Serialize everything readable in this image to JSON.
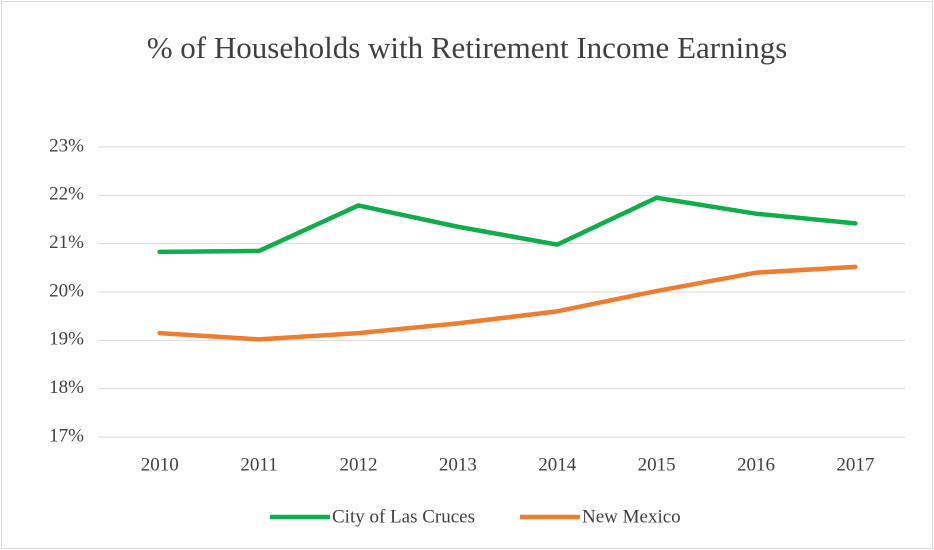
{
  "chart_data": {
    "type": "line",
    "title": "% of Households with Retirement Income Earnings",
    "categories": [
      "2010",
      "2011",
      "2012",
      "2013",
      "2014",
      "2015",
      "2016",
      "2017"
    ],
    "series": [
      {
        "name": "City of Las Cruces",
        "color": "#0fad4b",
        "values": [
          20.83,
          20.85,
          21.79,
          21.35,
          20.98,
          21.95,
          21.62,
          21.42
        ]
      },
      {
        "name": "New Mexico",
        "color": "#ed7d31",
        "values": [
          19.15,
          19.02,
          19.15,
          19.35,
          19.6,
          20.02,
          20.4,
          20.52
        ]
      }
    ],
    "ylim": [
      17,
      23
    ],
    "yticks": [
      {
        "value": 17,
        "label": "17%"
      },
      {
        "value": 18,
        "label": "18%"
      },
      {
        "value": 19,
        "label": "19%"
      },
      {
        "value": 20,
        "label": "20%"
      },
      {
        "value": 21,
        "label": "21%"
      },
      {
        "value": 22,
        "label": "22%"
      },
      {
        "value": 23,
        "label": "23%"
      }
    ],
    "grid": true,
    "legend": "bottom"
  }
}
